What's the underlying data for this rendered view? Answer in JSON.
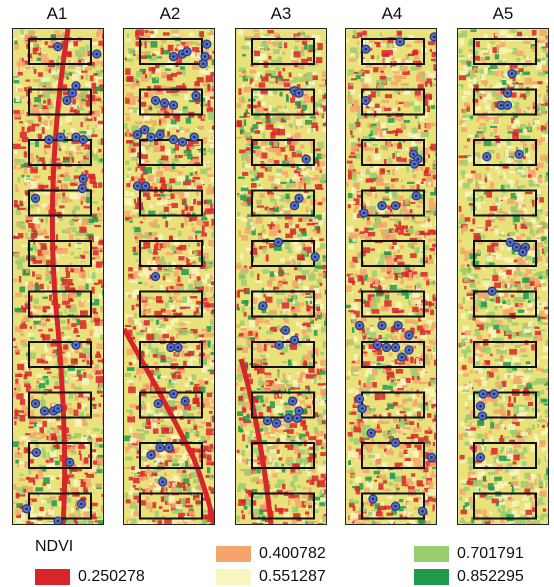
{
  "panels": [
    {
      "label": "A1",
      "points": [
        [
          0.5,
          0.03
        ],
        [
          0.93,
          0.045
        ],
        [
          0.66,
          0.125
        ],
        [
          0.7,
          0.11
        ],
        [
          0.6,
          0.14
        ],
        [
          0.4,
          0.22
        ],
        [
          0.53,
          0.215
        ],
        [
          0.7,
          0.215
        ],
        [
          0.78,
          0.22
        ],
        [
          0.77,
          0.32
        ],
        [
          0.78,
          0.3
        ],
        [
          0.25,
          0.34
        ],
        [
          0.7,
          0.64
        ],
        [
          0.25,
          0.76
        ],
        [
          0.35,
          0.775
        ],
        [
          0.45,
          0.775
        ],
        [
          0.5,
          0.77
        ],
        [
          0.26,
          0.86
        ],
        [
          0.63,
          0.88
        ],
        [
          0.15,
          0.975
        ],
        [
          0.76,
          0.965
        ],
        [
          0.5,
          1.0
        ]
      ]
    },
    {
      "label": "A2",
      "points": [
        [
          0.92,
          0.025
        ],
        [
          0.9,
          0.05
        ],
        [
          0.55,
          0.05
        ],
        [
          0.65,
          0.045
        ],
        [
          0.7,
          0.04
        ],
        [
          0.88,
          0.065
        ],
        [
          0.35,
          0.14
        ],
        [
          0.45,
          0.145
        ],
        [
          0.55,
          0.15
        ],
        [
          0.8,
          0.13
        ],
        [
          0.15,
          0.21
        ],
        [
          0.23,
          0.2
        ],
        [
          0.3,
          0.215
        ],
        [
          0.4,
          0.21
        ],
        [
          0.55,
          0.22
        ],
        [
          0.65,
          0.225
        ],
        [
          0.78,
          0.215
        ],
        [
          0.15,
          0.315
        ],
        [
          0.24,
          0.315
        ],
        [
          0.35,
          0.5
        ],
        [
          0.52,
          0.645
        ],
        [
          0.6,
          0.645
        ],
        [
          0.38,
          0.76
        ],
        [
          0.55,
          0.74
        ],
        [
          0.68,
          0.755
        ],
        [
          0.4,
          0.85
        ],
        [
          0.5,
          0.85
        ],
        [
          0.3,
          0.865
        ],
        [
          0.43,
          0.92
        ]
      ]
    },
    {
      "label": "A3",
      "points": [
        [
          0.65,
          0.12
        ],
        [
          0.7,
          0.125
        ],
        [
          0.78,
          0.26
        ],
        [
          0.7,
          0.34
        ],
        [
          0.65,
          0.355
        ],
        [
          0.47,
          0.43
        ],
        [
          0.88,
          0.46
        ],
        [
          0.3,
          0.56
        ],
        [
          0.55,
          0.61
        ],
        [
          0.48,
          0.64
        ],
        [
          0.65,
          0.63
        ],
        [
          0.35,
          0.795
        ],
        [
          0.45,
          0.8
        ],
        [
          0.58,
          0.79
        ],
        [
          0.68,
          0.79
        ],
        [
          0.7,
          0.775
        ],
        [
          0.63,
          0.755
        ]
      ]
    },
    {
      "label": "A4",
      "points": [
        [
          0.6,
          0.02
        ],
        [
          0.98,
          0.01
        ],
        [
          0.22,
          0.035
        ],
        [
          0.22,
          0.14
        ],
        [
          0.75,
          0.25
        ],
        [
          0.8,
          0.26
        ],
        [
          0.76,
          0.27
        ],
        [
          0.4,
          0.355
        ],
        [
          0.55,
          0.355
        ],
        [
          0.78,
          0.335
        ],
        [
          0.2,
          0.37
        ],
        [
          0.15,
          0.6
        ],
        [
          0.4,
          0.6
        ],
        [
          0.58,
          0.6
        ],
        [
          0.35,
          0.64
        ],
        [
          0.45,
          0.645
        ],
        [
          0.55,
          0.645
        ],
        [
          0.7,
          0.62
        ],
        [
          0.62,
          0.665
        ],
        [
          0.7,
          0.65
        ],
        [
          0.15,
          0.75
        ],
        [
          0.18,
          0.77
        ],
        [
          0.28,
          0.82
        ],
        [
          0.55,
          0.84
        ],
        [
          0.95,
          0.87
        ],
        [
          0.3,
          0.955
        ],
        [
          0.55,
          0.97
        ],
        [
          0.85,
          0.98
        ]
      ]
    },
    {
      "label": "A5",
      "points": [
        [
          0.6,
          0.085
        ],
        [
          0.55,
          0.125
        ],
        [
          0.48,
          0.15
        ],
        [
          0.55,
          0.15
        ],
        [
          0.32,
          0.255
        ],
        [
          0.68,
          0.25
        ],
        [
          0.58,
          0.43
        ],
        [
          0.65,
          0.44
        ],
        [
          0.75,
          0.44
        ],
        [
          0.72,
          0.45
        ],
        [
          0.38,
          0.53
        ],
        [
          0.28,
          0.74
        ],
        [
          0.4,
          0.74
        ],
        [
          0.25,
          0.765
        ],
        [
          0.27,
          0.785
        ],
        [
          0.25,
          0.87
        ]
      ]
    }
  ],
  "legend": {
    "title": "NDVI",
    "items": [
      {
        "value": "0.250278",
        "color": "#d8252a"
      },
      {
        "value": "0.400782",
        "color": "#f5a46b"
      },
      {
        "value": "0.551287",
        "color": "#f8f6bf"
      },
      {
        "value": "0.701791",
        "color": "#9acc70"
      },
      {
        "value": "0.852295",
        "color": "#1f9a4c"
      }
    ]
  }
}
